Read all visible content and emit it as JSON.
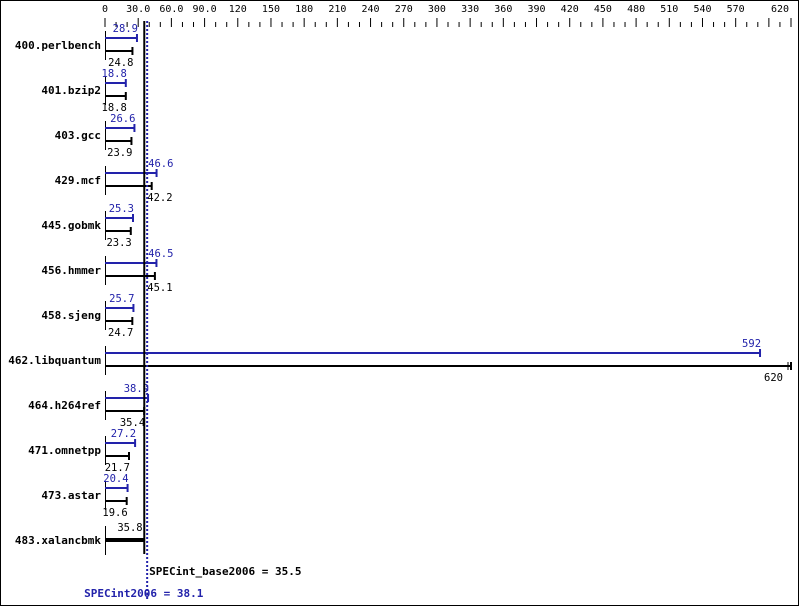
{
  "chart_data": {
    "type": "bar",
    "orientation": "horizontal",
    "xlim": [
      0,
      620
    ],
    "x_ticks": [
      "0",
      "30.0",
      "60.0",
      "90.0",
      "120",
      "150",
      "180",
      "210",
      "240",
      "270",
      "300",
      "330",
      "360",
      "390",
      "420",
      "450",
      "480",
      "510",
      "540",
      "570",
      "620"
    ],
    "categories": [
      "400.perlbench",
      "401.bzip2",
      "403.gcc",
      "429.mcf",
      "445.gobmk",
      "456.hmmer",
      "458.sjeng",
      "462.libquantum",
      "464.h264ref",
      "471.omnetpp",
      "473.astar",
      "483.xalancbmk"
    ],
    "series": [
      {
        "name": "SPECint2006",
        "color": "#2222aa",
        "values": [
          28.9,
          18.8,
          26.6,
          46.6,
          25.3,
          46.5,
          25.7,
          592,
          38.9,
          27.2,
          20.4,
          null
        ]
      },
      {
        "name": "SPECint_base2006",
        "color": "#000000",
        "values": [
          24.8,
          18.8,
          23.9,
          42.2,
          23.3,
          45.1,
          24.7,
          620,
          35.4,
          21.7,
          19.6,
          35.8
        ]
      }
    ],
    "reference_lines": [
      {
        "label": "SPECint_base2006 = 35.5",
        "value": 35.5,
        "color": "#000000",
        "style": "solid"
      },
      {
        "label": "SPECint2006 = 38.1",
        "value": 38.1,
        "color": "#2222aa",
        "style": "dotted"
      }
    ],
    "grid": false
  }
}
